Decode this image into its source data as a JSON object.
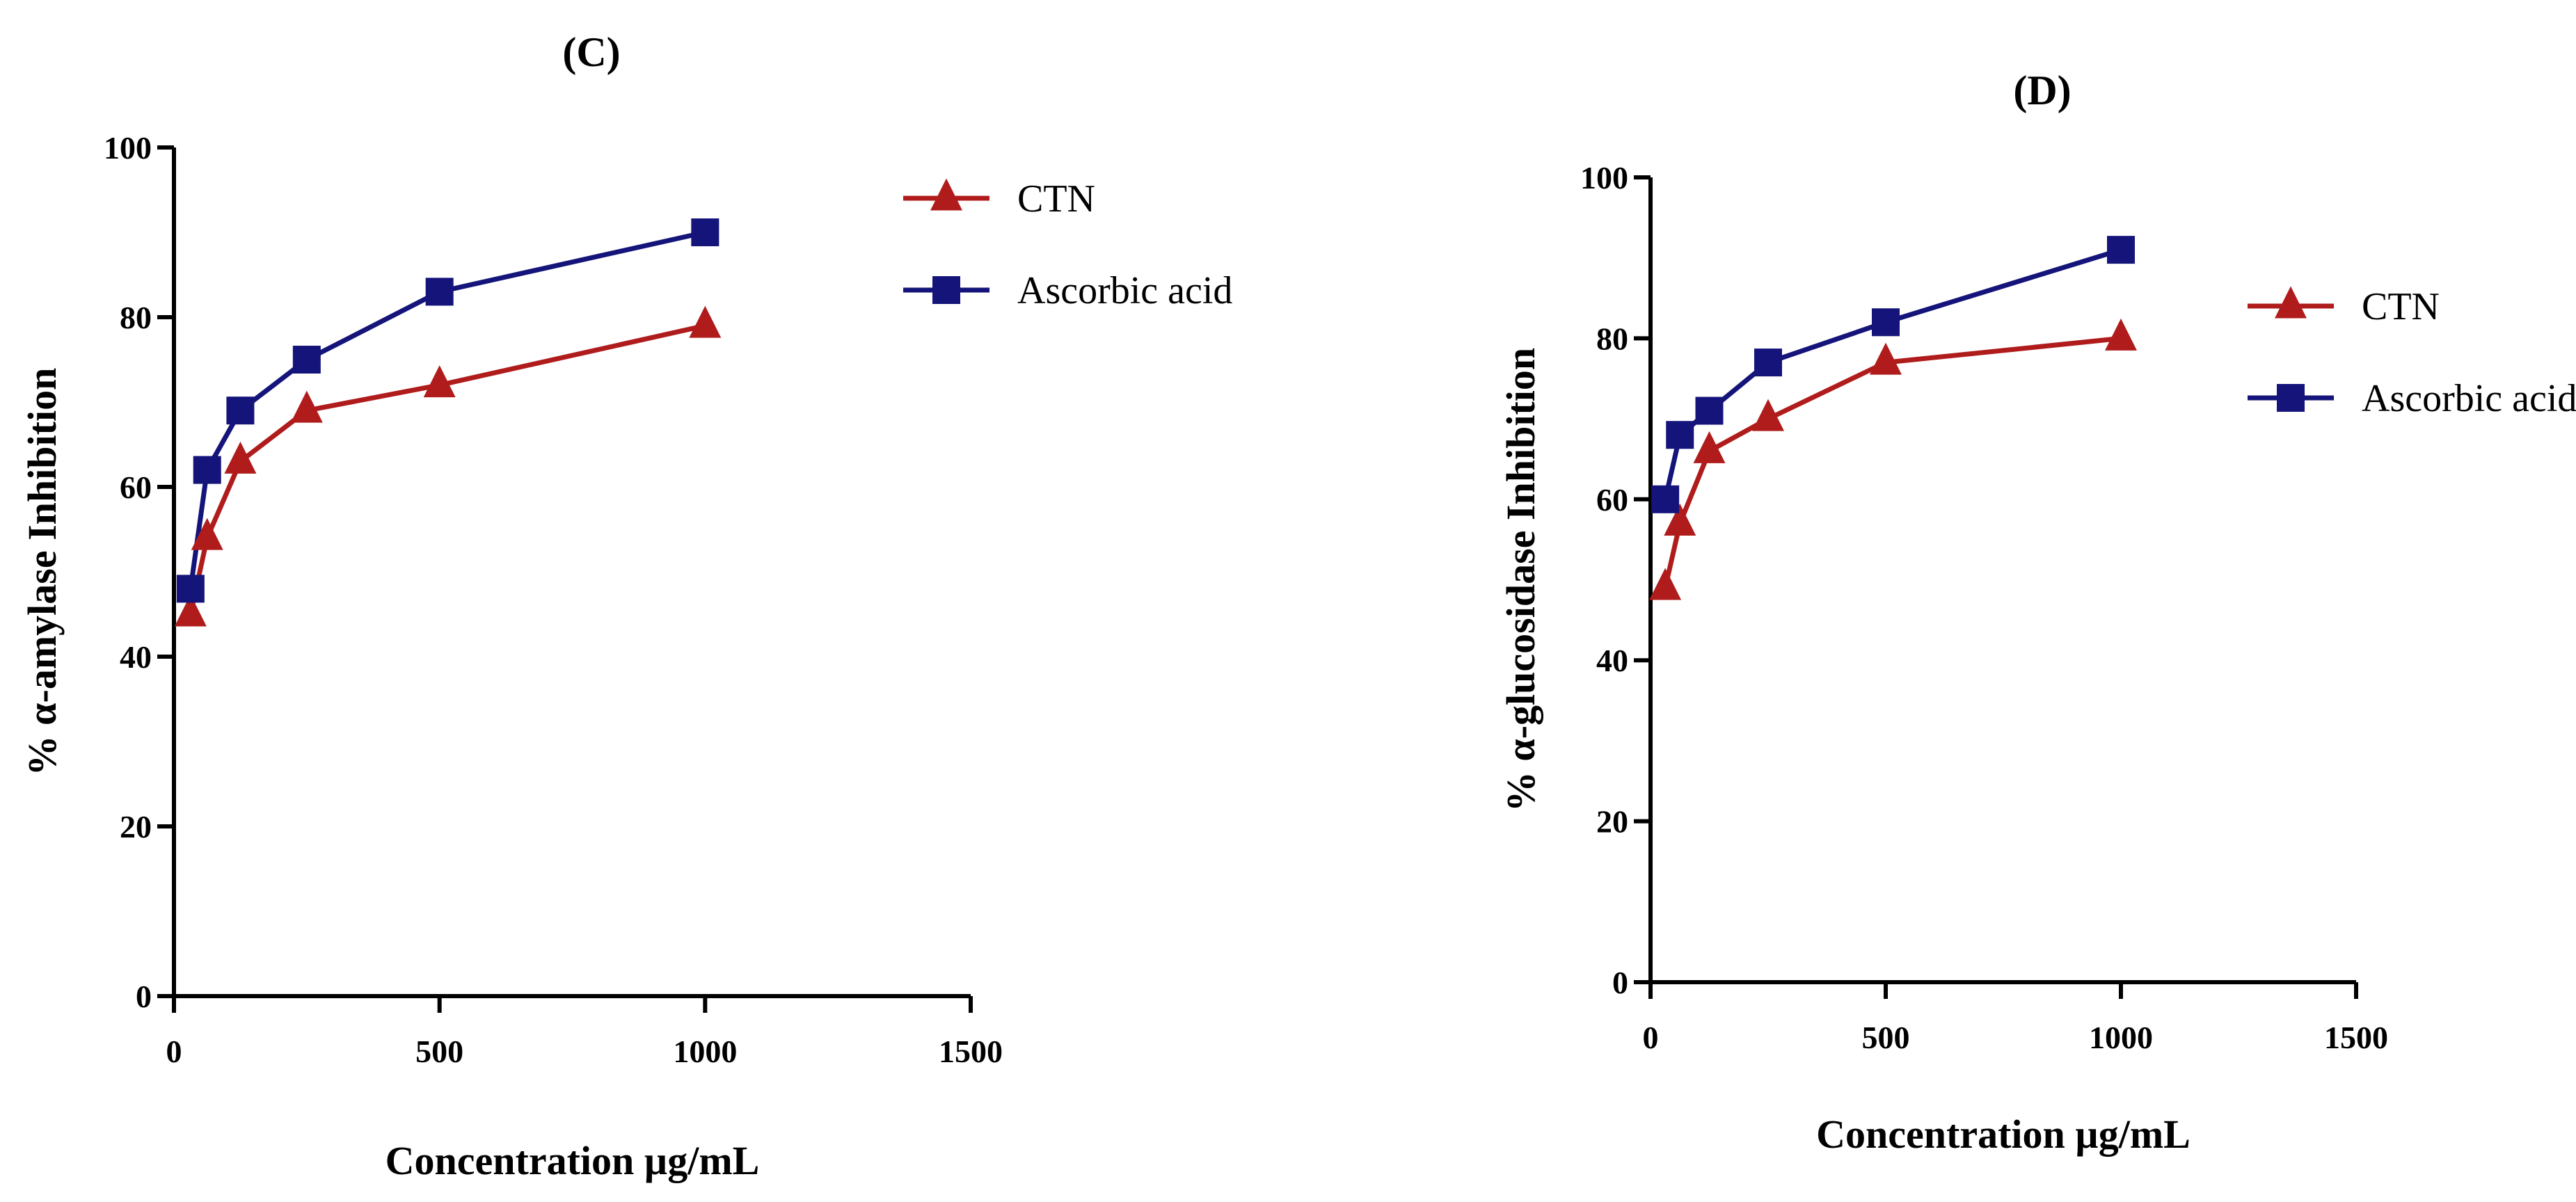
{
  "chart_data": [
    {
      "type": "line",
      "title": "(C)",
      "xlabel": "Concentration µg/mL",
      "ylabel": "% α-amylase Inhibition",
      "xlim": [
        0,
        1500
      ],
      "ylim": [
        0,
        100
      ],
      "xticks": [
        0,
        500,
        1000,
        1500
      ],
      "yticks": [
        0,
        20,
        40,
        60,
        80,
        100
      ],
      "grid": false,
      "legend_position": "top-right",
      "series": [
        {
          "name": "CTN",
          "marker": "triangle",
          "color": "#b01c1c",
          "x": [
            31.25,
            62.5,
            125,
            250,
            500,
            1000
          ],
          "y": [
            45,
            54,
            63,
            69,
            72,
            79
          ]
        },
        {
          "name": "Ascorbic acid",
          "marker": "square",
          "color": "#14147a",
          "x": [
            31.25,
            62.5,
            125,
            250,
            500,
            1000
          ],
          "y": [
            48,
            62,
            69,
            75,
            83,
            90
          ]
        }
      ]
    },
    {
      "type": "line",
      "title": "(D)",
      "xlabel": "Concentration µg/mL",
      "ylabel": "% α-glucosidase Inhibition",
      "xlim": [
        0,
        1500
      ],
      "ylim": [
        0,
        100
      ],
      "xticks": [
        0,
        500,
        1000,
        1500
      ],
      "yticks": [
        0,
        20,
        40,
        60,
        80,
        100
      ],
      "grid": false,
      "legend_position": "right",
      "series": [
        {
          "name": "CTN",
          "marker": "triangle",
          "color": "#b01c1c",
          "x": [
            31.25,
            62.5,
            125,
            250,
            500,
            1000
          ],
          "y": [
            49,
            57,
            66,
            70,
            77,
            80
          ]
        },
        {
          "name": "Ascorbic acid",
          "marker": "square",
          "color": "#14147a",
          "x": [
            31.25,
            62.5,
            125,
            250,
            500,
            1000
          ],
          "y": [
            60,
            68,
            71,
            77,
            82,
            91
          ]
        }
      ]
    }
  ]
}
